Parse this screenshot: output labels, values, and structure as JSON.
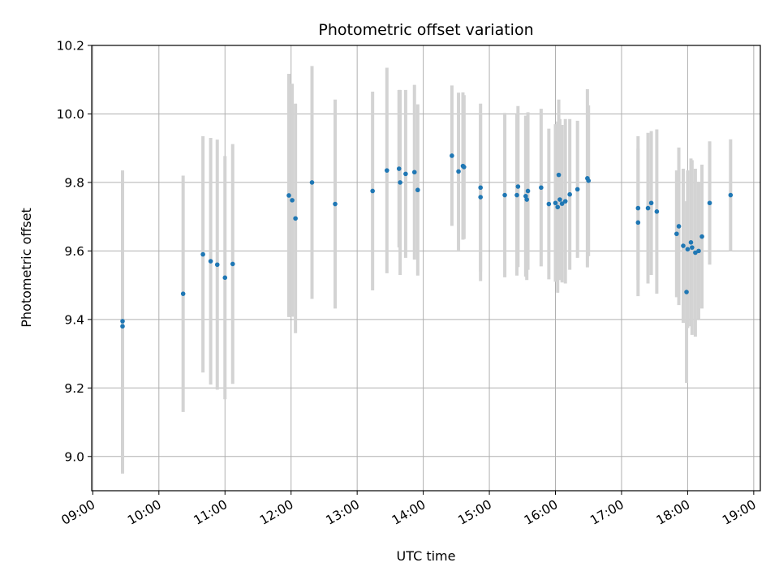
{
  "chart_data": {
    "type": "scatter",
    "title": "Photometric offset variation",
    "xlabel": "UTC time",
    "ylabel": "Photometric offset",
    "grid": true,
    "x_axis_kind": "time-of-day",
    "xlim": [
      "08:59",
      "19:06"
    ],
    "ylim": [
      8.9,
      10.2
    ],
    "x_ticks": [
      "09:00",
      "10:00",
      "11:00",
      "12:00",
      "13:00",
      "14:00",
      "15:00",
      "16:00",
      "17:00",
      "18:00",
      "19:00"
    ],
    "y_ticks": [
      "9.0",
      "9.2",
      "9.4",
      "9.6",
      "9.8",
      "10.0",
      "10.2"
    ],
    "colors": {
      "point": "#1f77b4",
      "errorbar": "#d3d3d3",
      "grid": "#b0b0b0"
    },
    "series": [
      {
        "points": [
          {
            "x": "09:27",
            "y": 9.38,
            "err": 0.43
          },
          {
            "x": "09:27",
            "y": 9.395,
            "err": 0.44
          },
          {
            "x": "10:22",
            "y": 9.475,
            "err": 0.345
          },
          {
            "x": "10:40",
            "y": 9.59,
            "err": 0.345
          },
          {
            "x": "10:47",
            "y": 9.57,
            "err": 0.36
          },
          {
            "x": "10:53",
            "y": 9.56,
            "err": 0.365
          },
          {
            "x": "11:00",
            "y": 9.522,
            "err": 0.355
          },
          {
            "x": "11:07",
            "y": 9.562,
            "err": 0.35
          },
          {
            "x": "11:58",
            "y": 9.762,
            "err": 0.355
          },
          {
            "x": "12:01",
            "y": 9.748,
            "err": 0.34
          },
          {
            "x": "12:04",
            "y": 9.695,
            "err": 0.335
          },
          {
            "x": "12:19",
            "y": 9.8,
            "err": 0.34
          },
          {
            "x": "12:40",
            "y": 9.737,
            "err": 0.305
          },
          {
            "x": "13:14",
            "y": 9.775,
            "err": 0.29
          },
          {
            "x": "13:27",
            "y": 9.835,
            "err": 0.3
          },
          {
            "x": "13:38",
            "y": 9.84,
            "err": 0.23
          },
          {
            "x": "13:39",
            "y": 9.8,
            "err": 0.27
          },
          {
            "x": "13:44",
            "y": 9.825,
            "err": 0.245
          },
          {
            "x": "13:52",
            "y": 9.83,
            "err": 0.255
          },
          {
            "x": "13:55",
            "y": 9.778,
            "err": 0.25
          },
          {
            "x": "14:26",
            "y": 9.878,
            "err": 0.205
          },
          {
            "x": "14:32",
            "y": 9.832,
            "err": 0.23
          },
          {
            "x": "14:36",
            "y": 9.848,
            "err": 0.215
          },
          {
            "x": "14:37",
            "y": 9.845,
            "err": 0.21
          },
          {
            "x": "14:52",
            "y": 9.785,
            "err": 0.245
          },
          {
            "x": "14:52",
            "y": 9.757,
            "err": 0.245
          },
          {
            "x": "15:14",
            "y": 9.763,
            "err": 0.24
          },
          {
            "x": "15:25",
            "y": 9.763,
            "err": 0.235
          },
          {
            "x": "15:26",
            "y": 9.788,
            "err": 0.235
          },
          {
            "x": "15:33",
            "y": 9.76,
            "err": 0.235
          },
          {
            "x": "15:34",
            "y": 9.75,
            "err": 0.235
          },
          {
            "x": "15:35",
            "y": 9.775,
            "err": 0.23
          },
          {
            "x": "15:47",
            "y": 9.785,
            "err": 0.23
          },
          {
            "x": "15:54",
            "y": 9.737,
            "err": 0.22
          },
          {
            "x": "16:00",
            "y": 9.74,
            "err": 0.23
          },
          {
            "x": "16:02",
            "y": 9.728,
            "err": 0.25
          },
          {
            "x": "16:03",
            "y": 9.822,
            "err": 0.22
          },
          {
            "x": "16:04",
            "y": 9.75,
            "err": 0.235
          },
          {
            "x": "16:06",
            "y": 9.738,
            "err": 0.23
          },
          {
            "x": "16:09",
            "y": 9.745,
            "err": 0.24
          },
          {
            "x": "16:13",
            "y": 9.765,
            "err": 0.22
          },
          {
            "x": "16:20",
            "y": 9.78,
            "err": 0.2
          },
          {
            "x": "16:29",
            "y": 9.812,
            "err": 0.26
          },
          {
            "x": "16:30",
            "y": 9.805,
            "err": 0.22
          },
          {
            "x": "17:15",
            "y": 9.725,
            "err": 0.21
          },
          {
            "x": "17:15",
            "y": 9.683,
            "err": 0.215
          },
          {
            "x": "17:24",
            "y": 9.725,
            "err": 0.22
          },
          {
            "x": "17:27",
            "y": 9.74,
            "err": 0.21
          },
          {
            "x": "17:32",
            "y": 9.715,
            "err": 0.24
          },
          {
            "x": "17:50",
            "y": 9.65,
            "err": 0.185
          },
          {
            "x": "17:52",
            "y": 9.672,
            "err": 0.23
          },
          {
            "x": "17:56",
            "y": 9.615,
            "err": 0.225
          },
          {
            "x": "17:59",
            "y": 9.48,
            "err": 0.265
          },
          {
            "x": "18:00",
            "y": 9.605,
            "err": 0.23
          },
          {
            "x": "18:03",
            "y": 9.625,
            "err": 0.245
          },
          {
            "x": "18:04",
            "y": 9.61,
            "err": 0.255
          },
          {
            "x": "18:07",
            "y": 9.595,
            "err": 0.245
          },
          {
            "x": "18:10",
            "y": 9.6,
            "err": 0.2
          },
          {
            "x": "18:13",
            "y": 9.642,
            "err": 0.21
          },
          {
            "x": "18:20",
            "y": 9.74,
            "err": 0.18
          },
          {
            "x": "18:39",
            "y": 9.763,
            "err": 0.163
          }
        ]
      }
    ]
  }
}
